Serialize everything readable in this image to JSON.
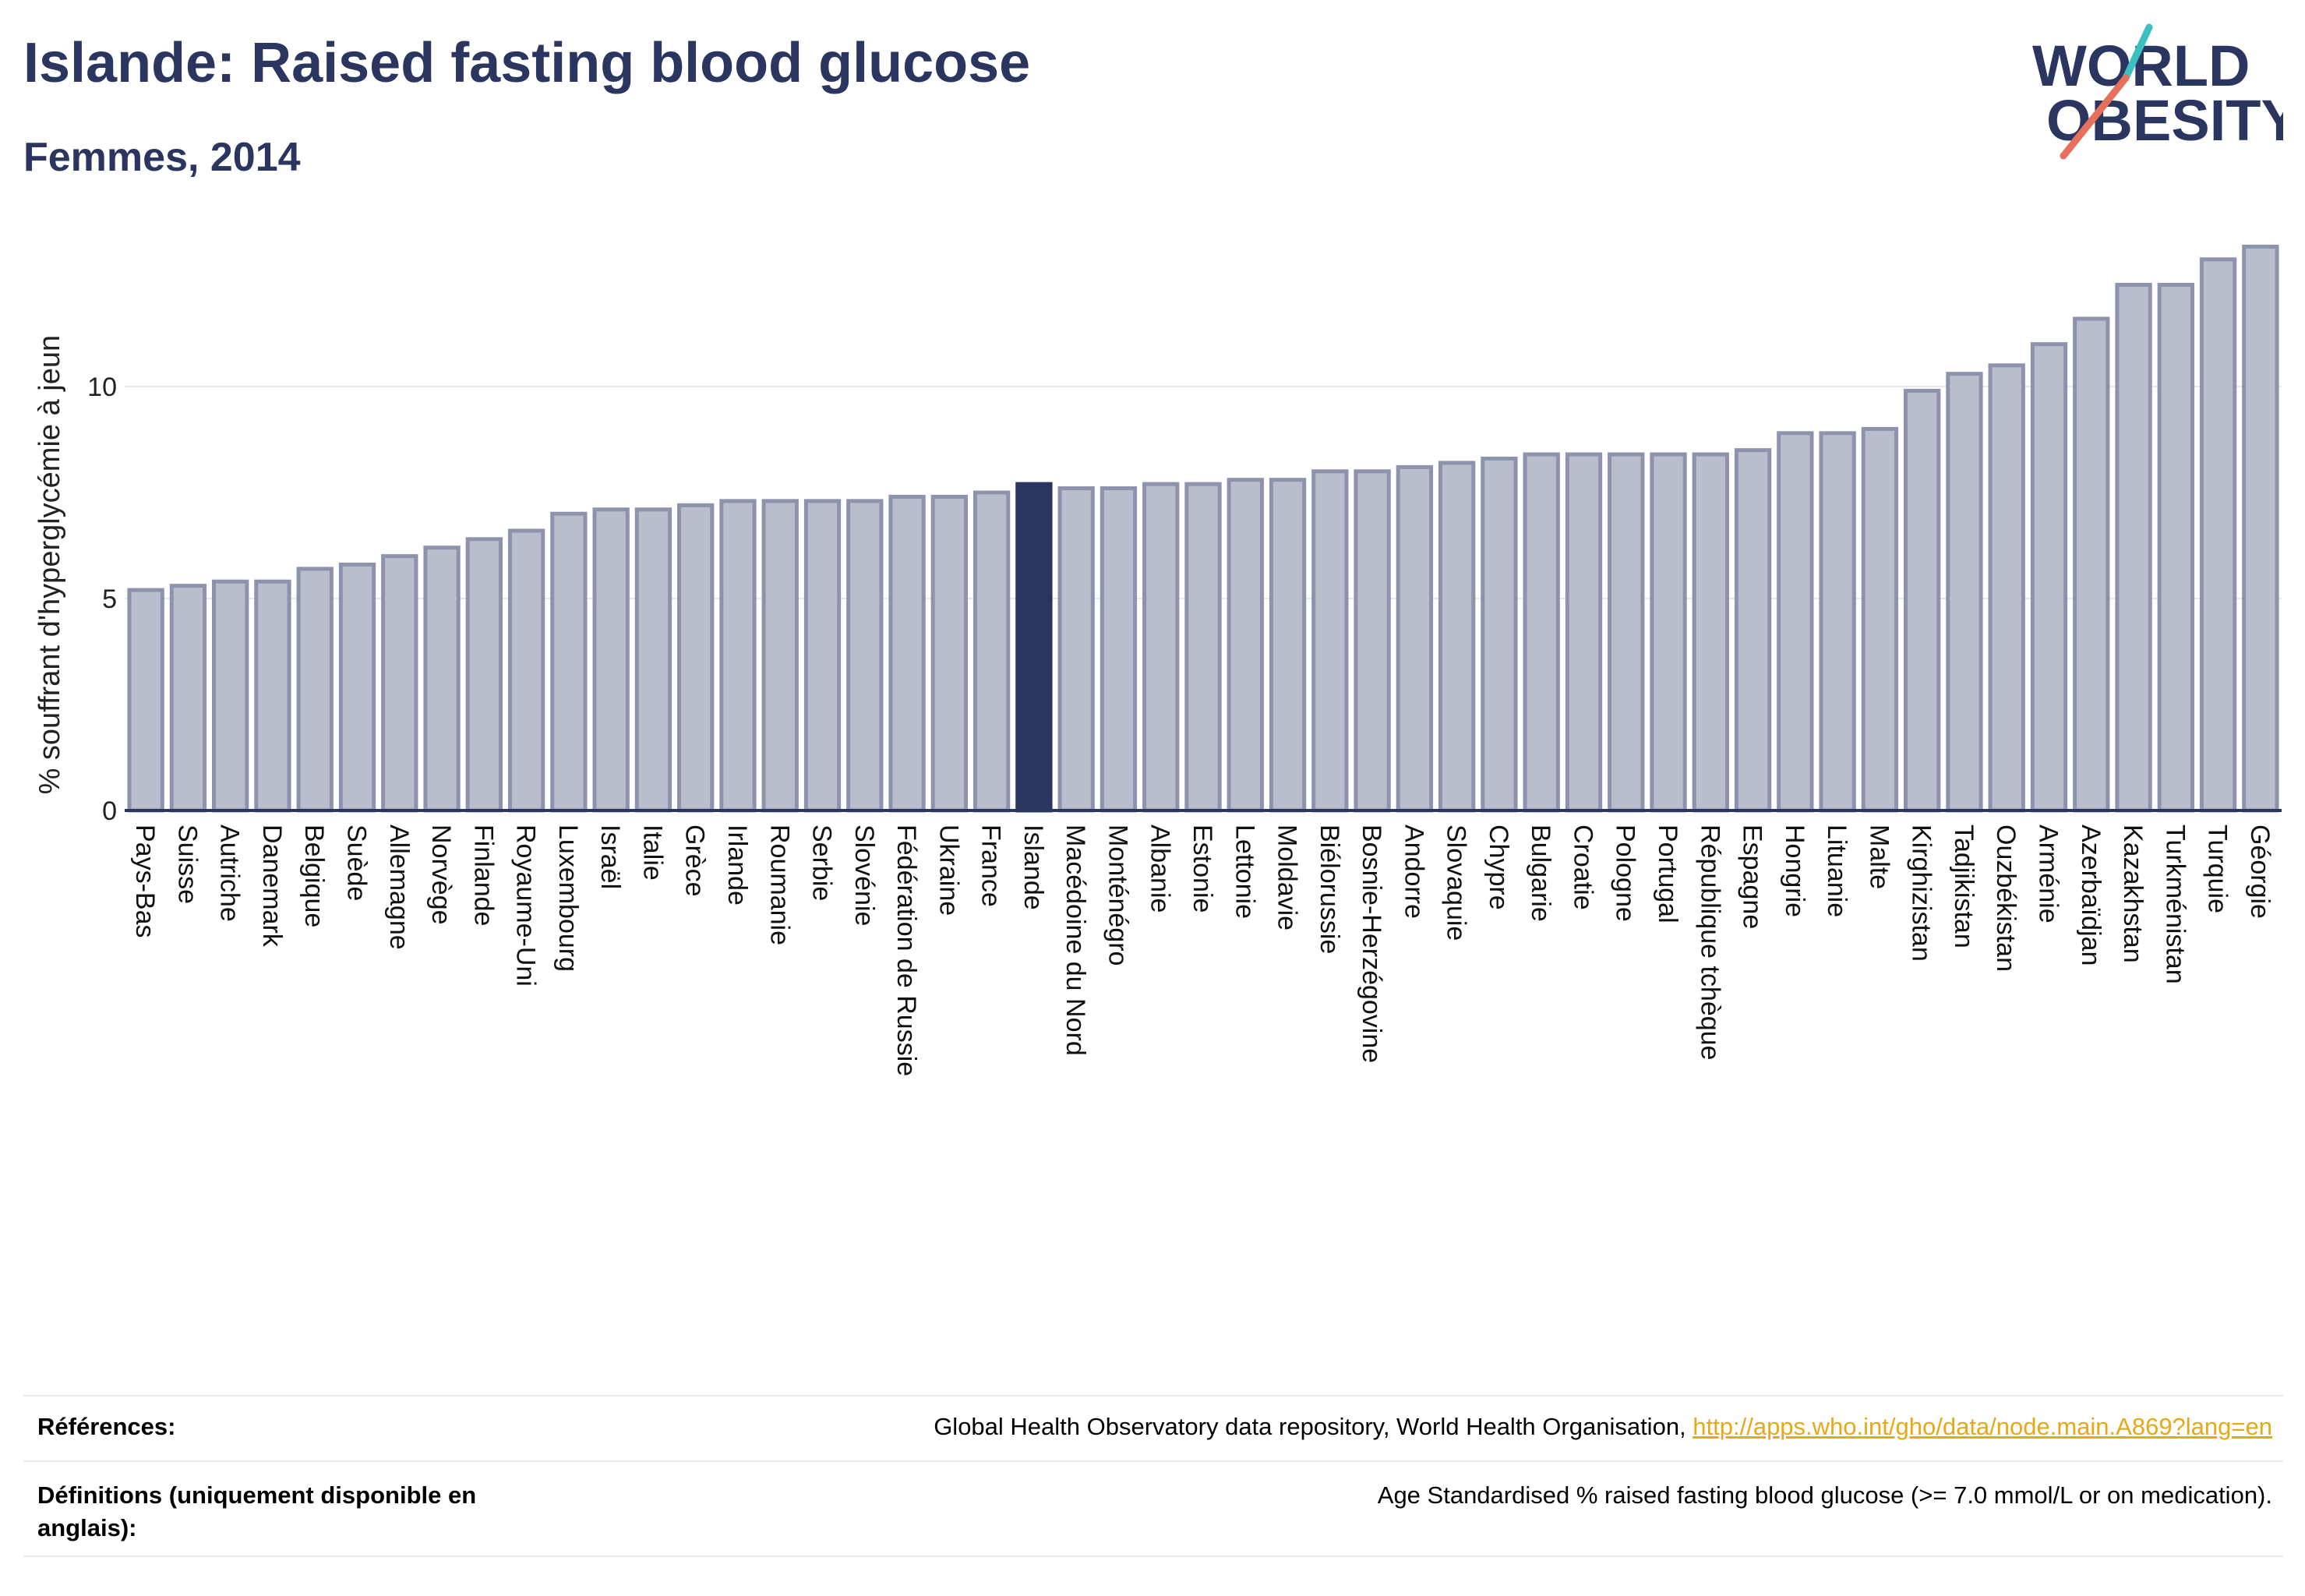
{
  "header": {
    "title": "Islande: Raised fasting blood glucose",
    "subtitle": "Femmes, 2014"
  },
  "logo": {
    "line1": "WORLD",
    "line2": "OBESITY"
  },
  "colors": {
    "bar": "#b9bdcc",
    "bar_stroke": "#8d93ad",
    "highlight": "#2a3560",
    "grid": "#e6e7ee",
    "text": "#2a3560",
    "link": "#e6a817",
    "logo_teal": "#3bbfbf",
    "logo_red": "#e8705a"
  },
  "chart_data": {
    "type": "bar",
    "title": "Islande: Raised fasting blood glucose",
    "subtitle": "Femmes, 2014",
    "xlabel": "",
    "ylabel": "% souffrant d'hyperglycémie à jeun",
    "ylim": [
      0,
      13.8
    ],
    "yticks": [
      0,
      5,
      10
    ],
    "grid": true,
    "highlight": "Islande",
    "categories": [
      "Pays-Bas",
      "Suisse",
      "Autriche",
      "Danemark",
      "Belgique",
      "Suède",
      "Allemagne",
      "Norvège",
      "Finlande",
      "Royaume-Uni",
      "Luxembourg",
      "Israël",
      "Italie",
      "Grèce",
      "Irlande",
      "Roumanie",
      "Serbie",
      "Slovénie",
      "Fédération de Russie",
      "Ukraine",
      "France",
      "Islande",
      "Macédoine du Nord",
      "Monténégro",
      "Albanie",
      "Estonie",
      "Lettonie",
      "Moldavie",
      "Biélorussie",
      "Bosnie-Herzégovine",
      "Andorre",
      "Slovaquie",
      "Chypre",
      "Bulgarie",
      "Croatie",
      "Pologne",
      "Portugal",
      "République tchèque",
      "Espagne",
      "Hongrie",
      "Lituanie",
      "Malte",
      "Kirghizistan",
      "Tadjikistan",
      "Ouzbékistan",
      "Arménie",
      "Azerbaïdjan",
      "Kazakhstan",
      "Turkménistan",
      "Turquie",
      "Géorgie"
    ],
    "values": [
      5.2,
      5.3,
      5.4,
      5.4,
      5.7,
      5.8,
      6.0,
      6.2,
      6.4,
      6.6,
      7.0,
      7.1,
      7.1,
      7.2,
      7.3,
      7.3,
      7.3,
      7.3,
      7.4,
      7.4,
      7.5,
      7.7,
      7.6,
      7.6,
      7.7,
      7.7,
      7.8,
      7.8,
      8.0,
      8.0,
      8.1,
      8.2,
      8.3,
      8.4,
      8.4,
      8.4,
      8.4,
      8.4,
      8.5,
      8.9,
      8.9,
      9.0,
      9.9,
      10.3,
      10.5,
      11.0,
      11.6,
      12.4,
      12.4,
      13.0,
      13.3
    ]
  },
  "references": {
    "label": "Références:",
    "text": "Global Health Observatory data repository, World Health Organisation, ",
    "link": "http://apps.who.int/gho/data/node.main.A869?lang=en"
  },
  "definitions": {
    "label": "Définitions (uniquement disponible en anglais):",
    "text": "Age Standardised % raised fasting blood glucose (>= 7.0 mmol/L or on medication)."
  }
}
